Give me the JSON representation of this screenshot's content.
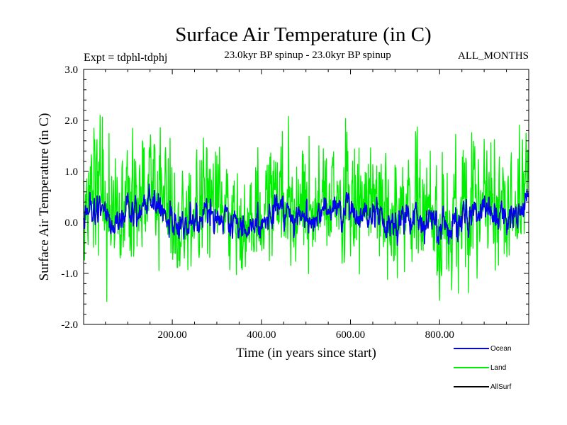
{
  "chart_data": {
    "type": "line",
    "title": "Surface Air Temperature (in C)",
    "subtitle_left": "Expt = tdphl-tdphj",
    "subtitle_center": "23.0kyr BP spinup - 23.0kyr BP spinup",
    "subtitle_right": "ALL_MONTHS",
    "xlabel": "Time (in years since start)",
    "ylabel": "Surface Air Temperature (in C)",
    "xlim": [
      1,
      1000
    ],
    "ylim": [
      -2.0,
      3.0
    ],
    "x_ticks": [
      200,
      400,
      600,
      800
    ],
    "x_tick_labels": [
      "200.00",
      "400.00",
      "600.00",
      "800.00"
    ],
    "y_ticks": [
      -2.0,
      -1.0,
      0.0,
      1.0,
      2.0,
      3.0
    ],
    "y_tick_labels": [
      "-2.0",
      "-1.0",
      "0.0",
      "1.0",
      "2.0",
      "3.0"
    ],
    "legend_position": "bottom-right, outside plot",
    "series": [
      {
        "name": "Land",
        "color": "#00ee00",
        "stats": {
          "n_years": 1000,
          "mean": 0.25,
          "std": 0.42,
          "max": 2.1,
          "min": -1.55
        }
      },
      {
        "name": "Ocean",
        "color": "#0000ff",
        "stats": {
          "n_years": 1000,
          "mean": 0.1,
          "std": 0.15,
          "max": 0.75,
          "min": -0.45
        }
      },
      {
        "name": "AllSurf",
        "color": "#000000",
        "stats": {
          "n_years": 1000,
          "mean": 0.1,
          "std": 0.15,
          "max": 0.75,
          "min": -0.45
        }
      }
    ]
  }
}
